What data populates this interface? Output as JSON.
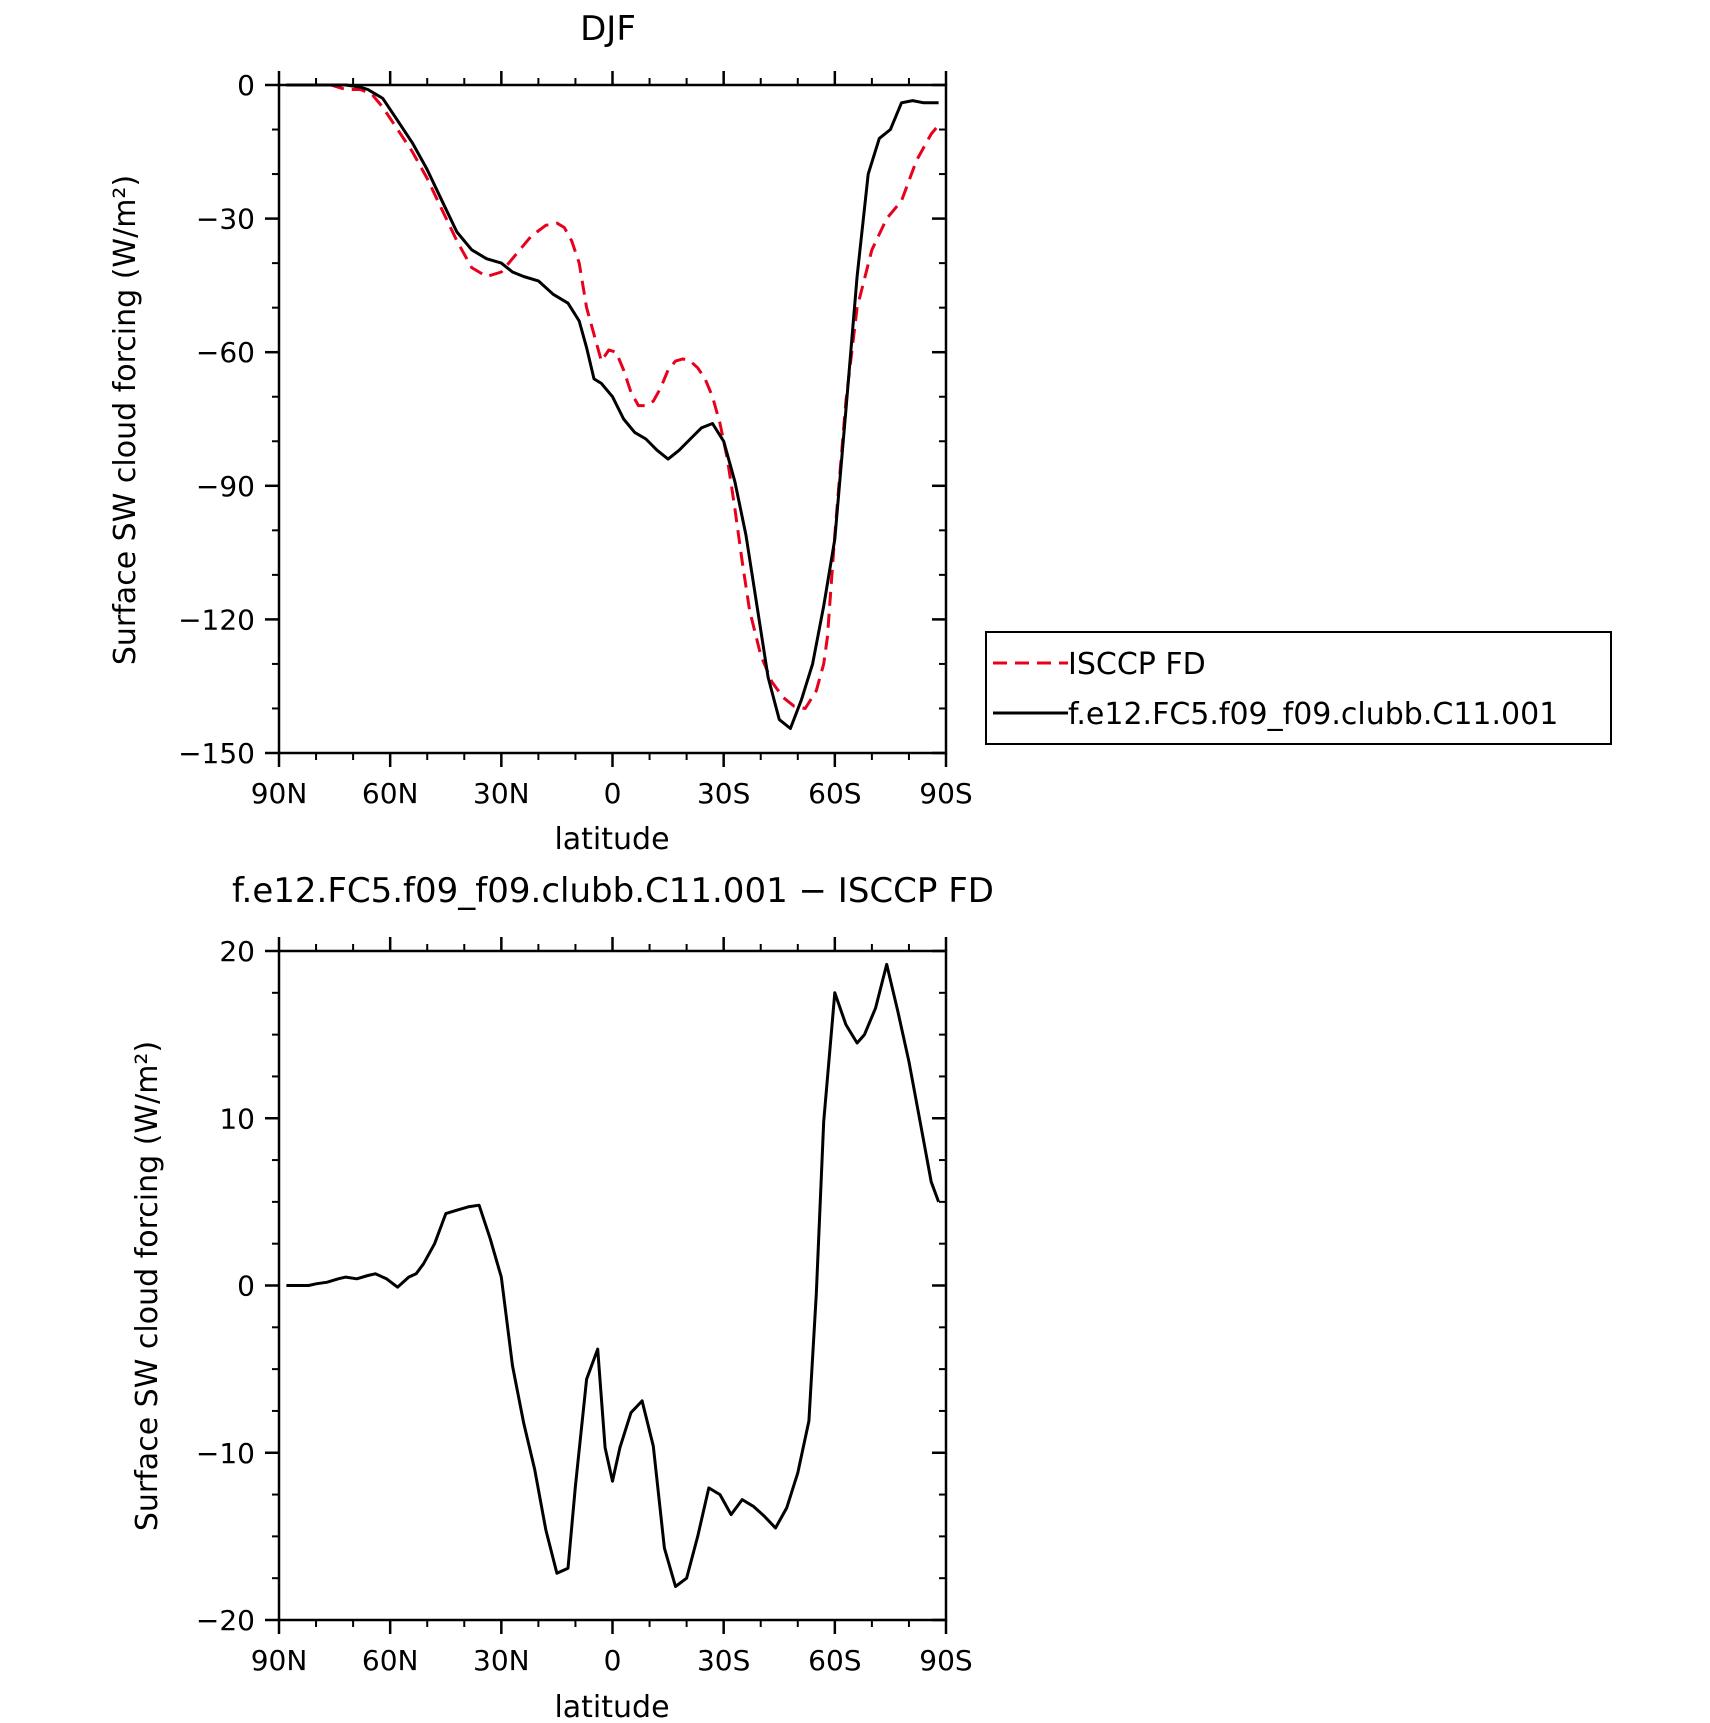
{
  "chart_data": [
    {
      "type": "line",
      "title": "DJF",
      "xlabel": "latitude",
      "ylabel": "Surface SW cloud forcing (W/m²)",
      "xlim": [
        90,
        -90
      ],
      "ylim": [
        -150,
        0
      ],
      "xticks": [
        90,
        60,
        30,
        0,
        -30,
        -60,
        -90
      ],
      "xtick_labels": [
        "90N",
        "60N",
        "30N",
        "0",
        "30S",
        "60S",
        "90S"
      ],
      "yticks": [
        0,
        -30,
        -60,
        -90,
        -120,
        -150
      ],
      "ytick_labels": [
        "0",
        "−30",
        "−60",
        "−90",
        "−120",
        "−150"
      ],
      "legend": "outside-right",
      "series": [
        {
          "name": "ISCCP FD",
          "color": "#e8001c",
          "dash": "dashed",
          "x": [
            88,
            84,
            80,
            76,
            72,
            68,
            65,
            62,
            58,
            54,
            50,
            46,
            42,
            38,
            34,
            30,
            26,
            22,
            18,
            15,
            13,
            11,
            9,
            7,
            5,
            3,
            1,
            -1,
            -3,
            -5,
            -7,
            -9,
            -11,
            -13,
            -15,
            -17,
            -19,
            -21,
            -23,
            -25,
            -27,
            -29,
            -31,
            -33,
            -35,
            -37,
            -40,
            -43,
            -46,
            -49,
            -52,
            -55,
            -57,
            -58,
            -60,
            -63,
            -66,
            -70,
            -74,
            -78,
            -82,
            -86,
            -88
          ],
          "y": [
            0,
            0,
            0,
            0,
            -1,
            -1,
            -2,
            -5,
            -10,
            -15,
            -21,
            -28,
            -35,
            -41,
            -43,
            -42,
            -38,
            -34,
            -31.5,
            -31,
            -32,
            -35,
            -40,
            -50,
            -56,
            -62,
            -59.5,
            -60,
            -64,
            -69,
            -72,
            -72,
            -71,
            -68,
            -64,
            -62,
            -61.5,
            -62,
            -63.5,
            -66,
            -70,
            -76,
            -84,
            -95,
            -107,
            -118,
            -128,
            -134,
            -137.5,
            -139.5,
            -140,
            -136,
            -130,
            -124,
            -101,
            -71,
            -50,
            -37,
            -30,
            -26,
            -17,
            -11,
            -9
          ]
        },
        {
          "name": "f.e12.FC5.f09_f09.clubb.C11.001",
          "color": "#000000",
          "dash": "solid",
          "x": [
            88,
            84,
            80,
            76,
            72,
            68,
            66,
            64,
            62,
            58,
            54,
            50,
            46,
            42,
            38,
            34,
            30,
            27,
            24,
            20,
            16,
            12,
            9,
            7,
            5,
            3,
            0,
            -3,
            -6,
            -9,
            -12,
            -15,
            -18,
            -21,
            -24,
            -27,
            -30,
            -33,
            -36,
            -39,
            -42,
            -45,
            -48,
            -51,
            -54,
            -57,
            -60,
            -63,
            -66,
            -69,
            -72,
            -75,
            -78,
            -81,
            -84,
            -87,
            -88
          ],
          "y": [
            0,
            0,
            0,
            0,
            0,
            -0.5,
            -1,
            -2,
            -3,
            -8,
            -13,
            -19,
            -26,
            -33,
            -37,
            -39,
            -40,
            -42,
            -43,
            -44,
            -47,
            -49,
            -53,
            -59,
            -66,
            -67,
            -70,
            -75,
            -78,
            -79.5,
            -82,
            -84,
            -82,
            -79.5,
            -77,
            -76,
            -80,
            -89,
            -101,
            -117,
            -133,
            -142.5,
            -144.5,
            -138,
            -130,
            -117,
            -102,
            -73,
            -43,
            -20,
            -12,
            -10,
            -4,
            -3.5,
            -4,
            -4,
            -4
          ]
        }
      ]
    },
    {
      "type": "line",
      "title": "f.e12.FC5.f09_f09.clubb.C11.001 − ISCCP FD",
      "xlabel": "latitude",
      "ylabel": "Surface SW cloud forcing (W/m²)",
      "xlim": [
        90,
        -90
      ],
      "ylim": [
        -20,
        20
      ],
      "xticks": [
        90,
        60,
        30,
        0,
        -30,
        -60,
        -90
      ],
      "xtick_labels": [
        "90N",
        "60N",
        "30N",
        "0",
        "30S",
        "60S",
        "90S"
      ],
      "yticks": [
        20,
        10,
        0,
        -10,
        -20
      ],
      "ytick_labels": [
        "20",
        "10",
        "0",
        "−10",
        "−20"
      ],
      "series": [
        {
          "color": "#000000",
          "dash": "solid",
          "x": [
            88,
            84,
            82,
            80,
            77,
            74,
            72,
            69,
            66,
            64,
            61,
            58,
            55,
            53,
            51,
            48,
            45,
            42,
            39,
            36,
            33,
            30,
            27,
            24,
            21,
            18,
            15,
            12,
            10,
            7,
            4,
            2,
            0,
            -2,
            -5,
            -8,
            -11,
            -14,
            -17,
            -20,
            -23,
            -26,
            -29,
            -32,
            -35,
            -38,
            -41,
            -44,
            -47,
            -50,
            -53,
            -55,
            -57,
            -60,
            -63,
            -66,
            -68,
            -71,
            -74,
            -77,
            -80,
            -83,
            -86,
            -88
          ],
          "y": [
            0,
            0,
            0,
            0.1,
            0.2,
            0.4,
            0.5,
            0.4,
            0.6,
            0.7,
            0.4,
            -0.1,
            0.5,
            0.7,
            1.3,
            2.5,
            4.3,
            4.5,
            4.7,
            4.8,
            2.8,
            0.5,
            -4.8,
            -8.2,
            -11,
            -14.6,
            -17.2,
            -16.9,
            -12,
            -5.6,
            -3.8,
            -9.7,
            -11.7,
            -9.7,
            -7.6,
            -6.9,
            -9.6,
            -15.7,
            -18,
            -17.5,
            -15,
            -12.1,
            -12.5,
            -13.7,
            -12.8,
            -13.2,
            -13.8,
            -14.5,
            -13.3,
            -11.2,
            -8.1,
            -0.5,
            9.8,
            17.5,
            15.6,
            14.5,
            15,
            16.6,
            19.2,
            16.4,
            13.4,
            9.8,
            6.2,
            5
          ]
        }
      ]
    }
  ]
}
